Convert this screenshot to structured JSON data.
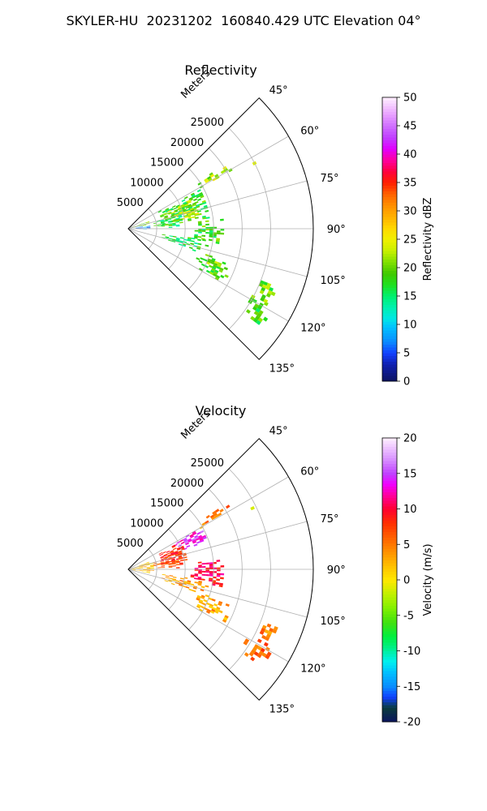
{
  "title": "SKYLER-HU  20231202  160840.429 UTC Elevation 04°",
  "chart_data": [
    {
      "type": "heatmap",
      "subplot": "polar-sector",
      "title": "Reflectivity",
      "radial_label": "Meters",
      "radial_ticks": [
        5000,
        10000,
        15000,
        20000,
        25000
      ],
      "radial_range": [
        0,
        32500
      ],
      "azimuth_range_deg": [
        45,
        135
      ],
      "azimuth_ticks": [
        "45°",
        "60°",
        "75°",
        "90°",
        "105°",
        "120°",
        "135°"
      ],
      "grid": true,
      "colorbar": {
        "label": "Reflectivity dBZ",
        "range": [
          0,
          50
        ],
        "ticks": [
          0,
          5,
          10,
          15,
          20,
          25,
          30,
          35,
          40,
          45,
          50
        ],
        "stops": [
          [
            0,
            "#0c1460"
          ],
          [
            3,
            "#1020b0"
          ],
          [
            5,
            "#1240ff"
          ],
          [
            7,
            "#0a8cff"
          ],
          [
            9.5,
            "#00c0ff"
          ],
          [
            11,
            "#00e6e6"
          ],
          [
            13,
            "#00f0b0"
          ],
          [
            15,
            "#00f070"
          ],
          [
            17,
            "#20e020"
          ],
          [
            19,
            "#40c800"
          ],
          [
            21,
            "#80e000"
          ],
          [
            23,
            "#c8f000"
          ],
          [
            25,
            "#f0f000"
          ],
          [
            27,
            "#ffd800"
          ],
          [
            29,
            "#ffb000"
          ],
          [
            31,
            "#ff9000"
          ],
          [
            33,
            "#ff6000"
          ],
          [
            35,
            "#ff2000"
          ],
          [
            37,
            "#ff0040"
          ],
          [
            39,
            "#ff00a0"
          ],
          [
            41,
            "#e000ff"
          ],
          [
            43,
            "#c040ff"
          ],
          [
            45,
            "#d070ff"
          ],
          [
            47,
            "#e8a0ff"
          ],
          [
            50,
            "#fff0ff"
          ]
        ]
      },
      "echo_regions": [
        {
          "az": [
            56,
            60
          ],
          "r": [
            14500,
            20500
          ],
          "value": 22
        },
        {
          "az": [
            60,
            82
          ],
          "r": [
            6000,
            14000
          ],
          "value": 18
        },
        {
          "az": [
            65,
            80
          ],
          "r": [
            7500,
            12500
          ],
          "value": 23
        },
        {
          "az": [
            72,
            88
          ],
          "r": [
            4500,
            9500
          ],
          "value": 17
        },
        {
          "az": [
            80,
            92
          ],
          "r": [
            0,
            3500
          ],
          "value": 6
        },
        {
          "az": [
            68,
            80
          ],
          "r": [
            0,
            3500
          ],
          "value": 20
        },
        {
          "az": [
            84,
            100
          ],
          "r": [
            11000,
            16500
          ],
          "value": 18
        },
        {
          "az": [
            98,
            108
          ],
          "r": [
            6000,
            14000
          ],
          "value": 17
        },
        {
          "az": [
            108,
            120
          ],
          "r": [
            13000,
            19000
          ],
          "value": 20
        },
        {
          "az": [
            118,
            126
          ],
          "r": [
            24000,
            29000
          ],
          "value": 19
        },
        {
          "az": [
            110,
            118
          ],
          "r": [
            25000,
            28000
          ],
          "value": 20
        },
        {
          "az": [
            62,
            64
          ],
          "r": [
            24000,
            25000
          ],
          "value": 22
        }
      ]
    },
    {
      "type": "heatmap",
      "subplot": "polar-sector",
      "title": "Velocity",
      "radial_label": "Meters",
      "radial_ticks": [
        5000,
        10000,
        15000,
        20000,
        25000
      ],
      "radial_range": [
        0,
        32500
      ],
      "azimuth_range_deg": [
        45,
        135
      ],
      "azimuth_ticks": [
        "45°",
        "60°",
        "75°",
        "90°",
        "105°",
        "120°",
        "135°"
      ],
      "grid": true,
      "colorbar": {
        "label": "Velocity (m/s)",
        "range": [
          -20,
          20
        ],
        "ticks": [
          -20,
          -15,
          -10,
          -5,
          0,
          5,
          10,
          15,
          20
        ],
        "stops": [
          [
            -20,
            "#0c1460"
          ],
          [
            -18,
            "#0a3c3c"
          ],
          [
            -16.5,
            "#1040ff"
          ],
          [
            -15,
            "#0a8cff"
          ],
          [
            -13,
            "#00c0ff"
          ],
          [
            -11.5,
            "#00f0f0"
          ],
          [
            -10,
            "#00f0a0"
          ],
          [
            -8,
            "#00f040"
          ],
          [
            -6,
            "#40e010"
          ],
          [
            -4,
            "#80f000"
          ],
          [
            -2,
            "#c0f000"
          ],
          [
            0,
            "#ffe800"
          ],
          [
            2,
            "#ffc000"
          ],
          [
            4,
            "#ff9000"
          ],
          [
            6,
            "#ff6000"
          ],
          [
            8,
            "#ff3000"
          ],
          [
            10,
            "#ff0030"
          ],
          [
            12,
            "#ff00a0"
          ],
          [
            13.5,
            "#f000ff"
          ],
          [
            15,
            "#c040ff"
          ],
          [
            17,
            "#d890ff"
          ],
          [
            20,
            "#fff0ff"
          ]
        ]
      },
      "echo_regions": [
        {
          "az": [
            56,
            60
          ],
          "r": [
            14500,
            20500
          ],
          "value": 5
        },
        {
          "az": [
            60,
            70
          ],
          "r": [
            9000,
            14500
          ],
          "value": 14
        },
        {
          "az": [
            62,
            82
          ],
          "r": [
            6000,
            10500
          ],
          "value": 8
        },
        {
          "az": [
            72,
            88
          ],
          "r": [
            4500,
            9500
          ],
          "value": 7
        },
        {
          "az": [
            70,
            100
          ],
          "r": [
            0,
            4000
          ],
          "value": 2
        },
        {
          "az": [
            84,
            100
          ],
          "r": [
            11000,
            16500
          ],
          "value": 10
        },
        {
          "az": [
            98,
            108
          ],
          "r": [
            6000,
            14000
          ],
          "value": 4
        },
        {
          "az": [
            108,
            120
          ],
          "r": [
            13000,
            19000
          ],
          "value": 3
        },
        {
          "az": [
            118,
            126
          ],
          "r": [
            24000,
            29000
          ],
          "value": 6
        },
        {
          "az": [
            110,
            118
          ],
          "r": [
            25000,
            28000
          ],
          "value": 5
        },
        {
          "az": [
            62,
            64
          ],
          "r": [
            24000,
            25000
          ],
          "value": 1
        }
      ]
    }
  ]
}
